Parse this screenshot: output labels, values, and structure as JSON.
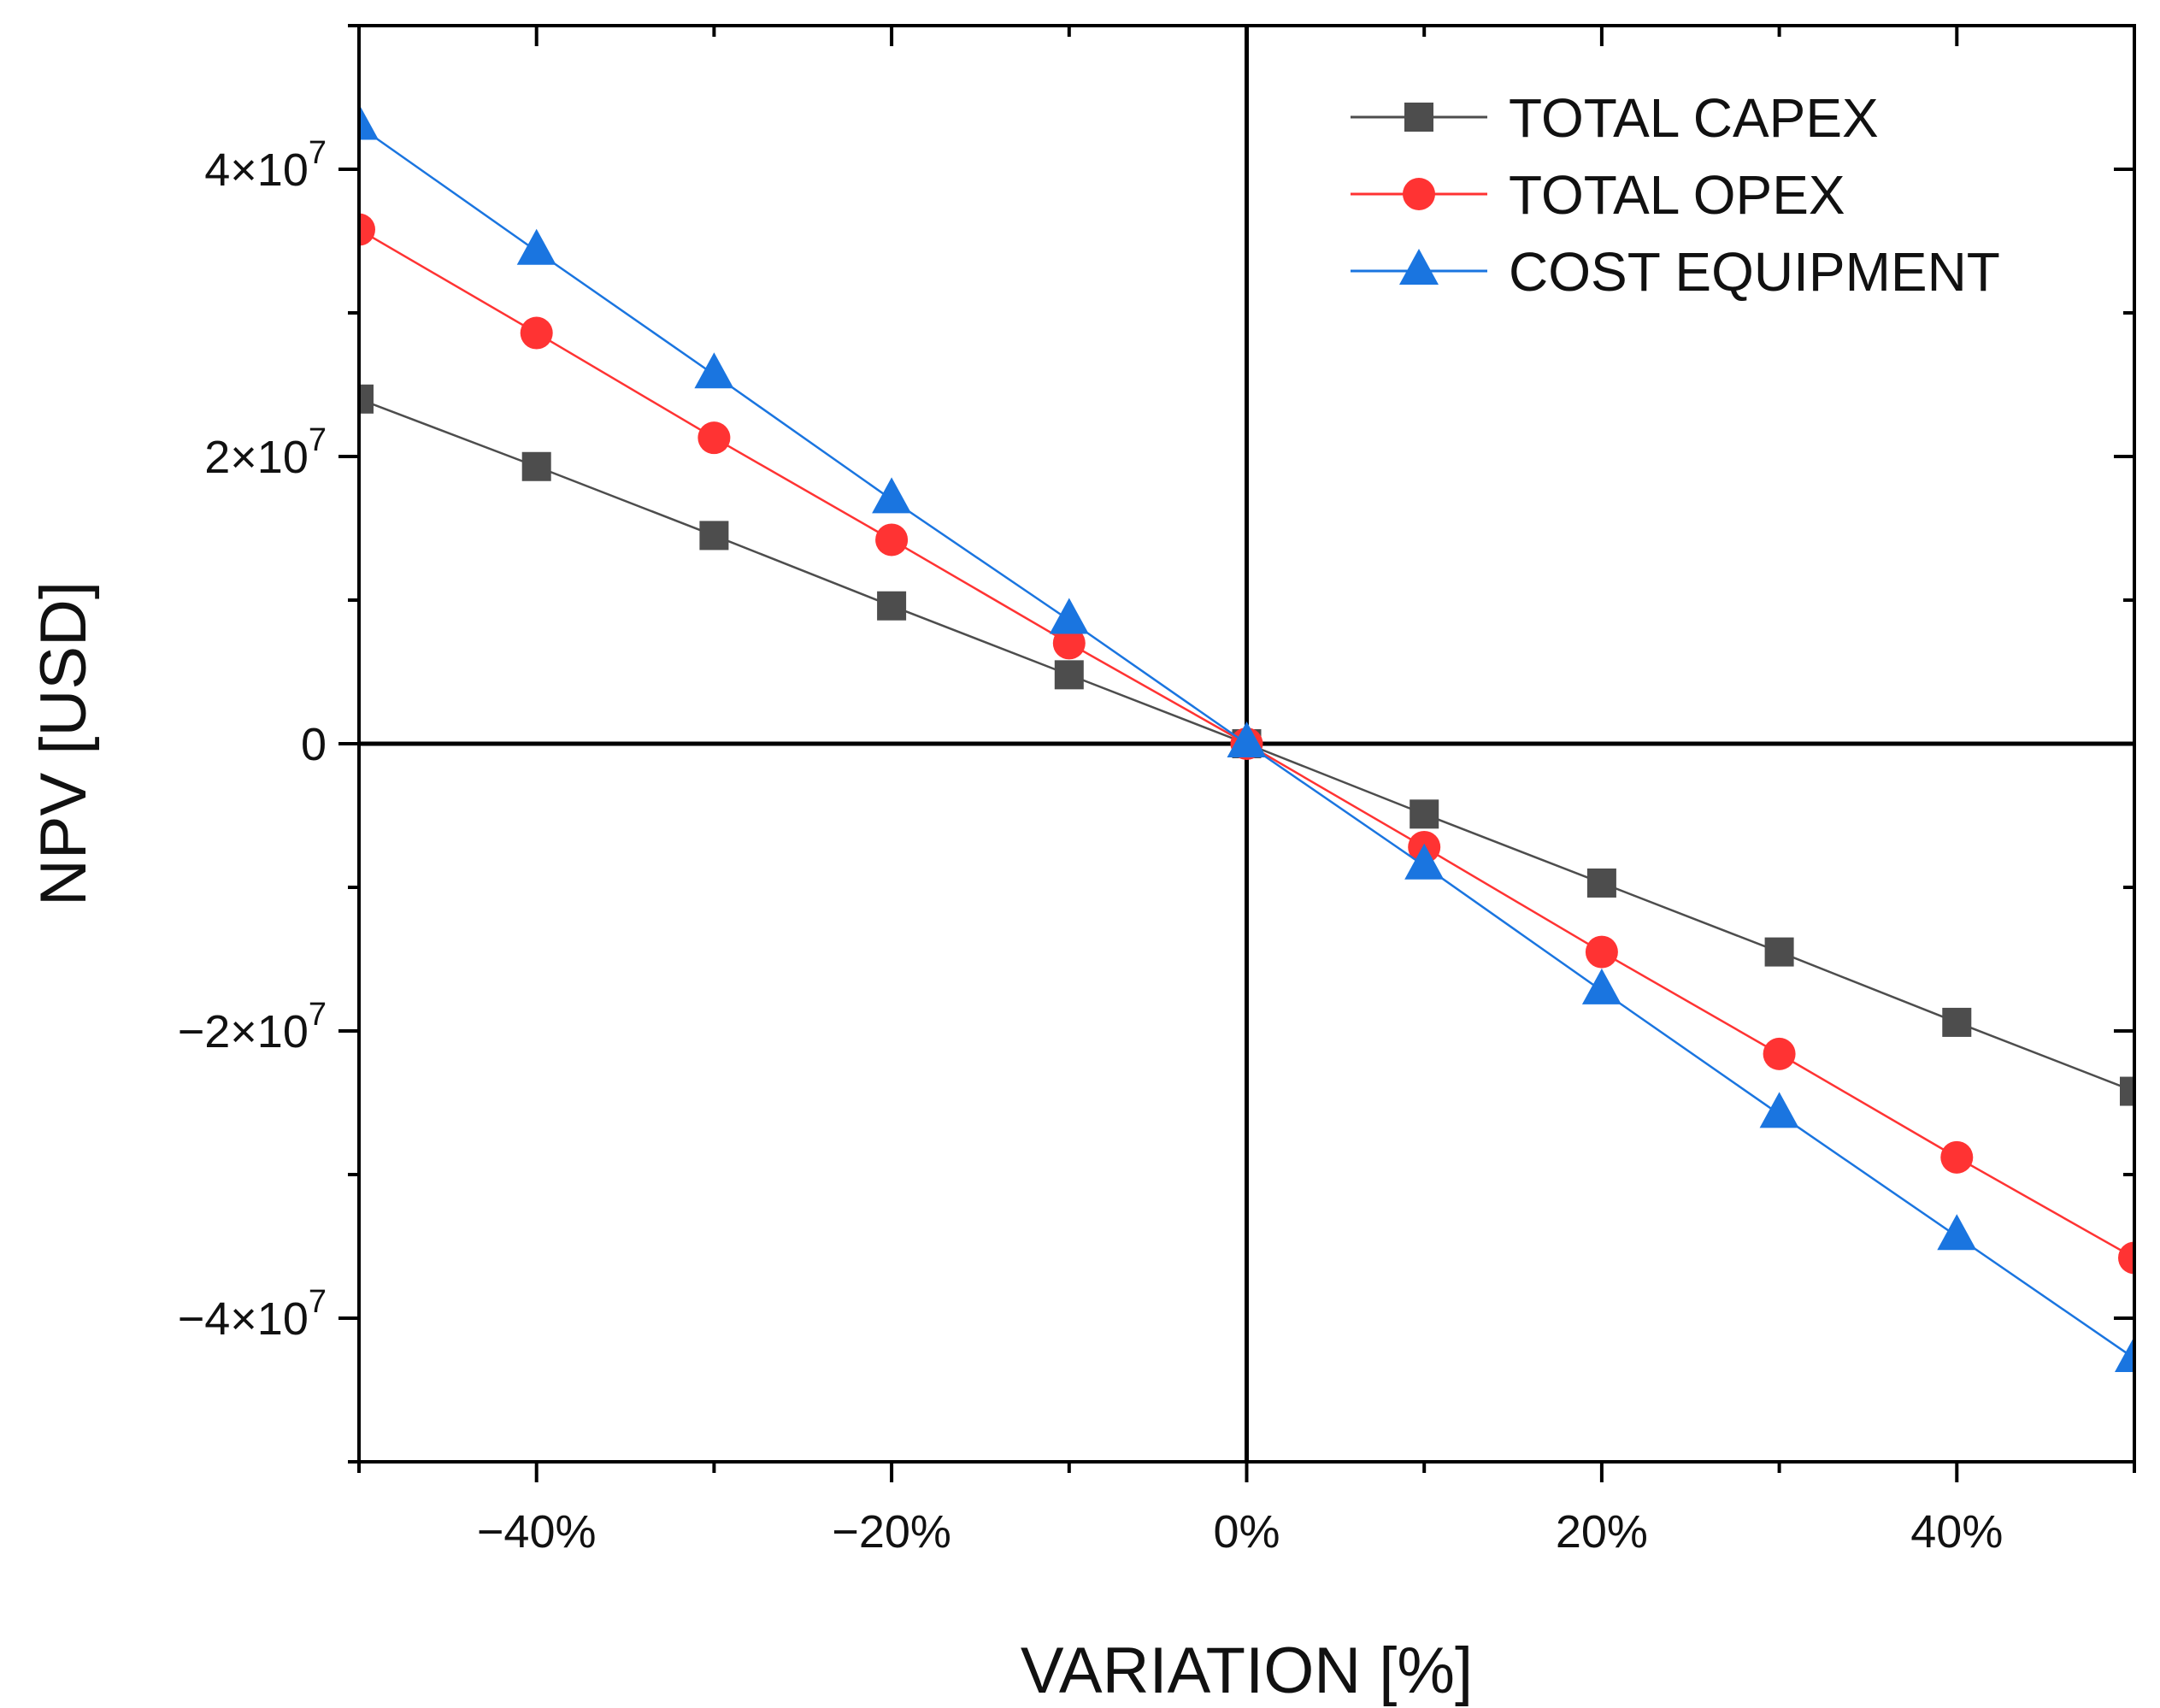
{
  "chart_data": {
    "type": "line",
    "xlabel": "VARIATION [%]",
    "ylabel": "NPV [USD]",
    "xlim": [
      -50,
      50
    ],
    "ylim": [
      -50000000,
      50000000
    ],
    "x_ticks": [
      {
        "value": -40,
        "label": "−40%"
      },
      {
        "value": -20,
        "label": "−20%"
      },
      {
        "value": 0,
        "label": "0%"
      },
      {
        "value": 20,
        "label": "20%"
      },
      {
        "value": 40,
        "label": "40%"
      }
    ],
    "y_ticks": [
      {
        "value": 40000000,
        "mant": "4×10",
        "exp": "7"
      },
      {
        "value": 20000000,
        "mant": "2×10",
        "exp": "7"
      },
      {
        "value": 0,
        "mant": "0",
        "exp": ""
      },
      {
        "value": -20000000,
        "mant": "−2×10",
        "exp": "7"
      },
      {
        "value": -40000000,
        "mant": "−4×10",
        "exp": "7"
      }
    ],
    "x": [
      -50,
      -40,
      -30,
      -20,
      -10,
      0,
      10,
      20,
      30,
      40,
      50
    ],
    "series": [
      {
        "name": "TOTAL CAPEX",
        "color": "#4d4d4d",
        "marker": "square",
        "values": [
          24000000,
          19300000,
          14500000,
          9600000,
          4800000,
          0,
          -4900000,
          -9700000,
          -14500000,
          -19400000,
          -24200000
        ]
      },
      {
        "name": "TOTAL OPEX",
        "color": "#ff3333",
        "marker": "circle",
        "values": [
          35800000,
          28600000,
          21300000,
          14200000,
          7000000,
          0,
          -7200000,
          -14500000,
          -21600000,
          -28800000,
          -35800000
        ]
      },
      {
        "name": "COST EQUIPMENT",
        "color": "#1a75e0",
        "marker": "triangle",
        "values": [
          43000000,
          34300000,
          25700000,
          17000000,
          8600000,
          0,
          -8500000,
          -17200000,
          -25800000,
          -34300000,
          -42800000
        ]
      }
    ]
  }
}
